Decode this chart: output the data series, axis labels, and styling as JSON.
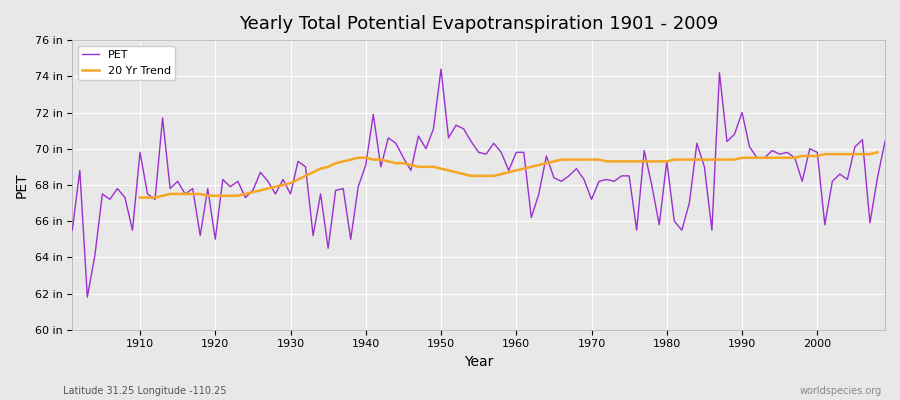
{
  "title": "Yearly Total Potential Evapotranspiration 1901 - 2009",
  "xlabel": "Year",
  "ylabel": "PET",
  "footnote_left": "Latitude 31.25 Longitude -110.25",
  "footnote_right": "worldspecies.org",
  "pet_color": "#9b30d0",
  "trend_color": "#f5a623",
  "bg_color": "#e8e8e8",
  "ylim": [
    60,
    76
  ],
  "ytick_labels": [
    "60 in",
    "62 in",
    "64 in",
    "66 in",
    "68 in",
    "70 in",
    "72 in",
    "74 in",
    "76 in"
  ],
  "ytick_values": [
    60,
    62,
    64,
    66,
    68,
    70,
    72,
    74,
    76
  ],
  "xtick_values": [
    1910,
    1920,
    1930,
    1940,
    1950,
    1960,
    1970,
    1980,
    1990,
    2000
  ],
  "years": [
    1901,
    1902,
    1903,
    1904,
    1905,
    1906,
    1907,
    1908,
    1909,
    1910,
    1911,
    1912,
    1913,
    1914,
    1915,
    1916,
    1917,
    1918,
    1919,
    1920,
    1921,
    1922,
    1923,
    1924,
    1925,
    1926,
    1927,
    1928,
    1929,
    1930,
    1931,
    1932,
    1933,
    1934,
    1935,
    1936,
    1937,
    1938,
    1939,
    1940,
    1941,
    1942,
    1943,
    1944,
    1945,
    1946,
    1947,
    1948,
    1949,
    1950,
    1951,
    1952,
    1953,
    1954,
    1955,
    1956,
    1957,
    1958,
    1959,
    1960,
    1961,
    1962,
    1963,
    1964,
    1965,
    1966,
    1967,
    1968,
    1969,
    1970,
    1971,
    1972,
    1973,
    1974,
    1975,
    1976,
    1977,
    1978,
    1979,
    1980,
    1981,
    1982,
    1983,
    1984,
    1985,
    1986,
    1987,
    1988,
    1989,
    1990,
    1991,
    1992,
    1993,
    1994,
    1995,
    1996,
    1997,
    1998,
    1999,
    2000,
    2001,
    2002,
    2003,
    2004,
    2005,
    2006,
    2007,
    2008,
    2009
  ],
  "pet_values": [
    65.5,
    68.8,
    61.8,
    64.1,
    67.5,
    67.2,
    67.8,
    67.3,
    65.5,
    69.8,
    67.5,
    67.2,
    71.7,
    67.8,
    68.2,
    67.5,
    67.8,
    65.2,
    67.8,
    65.0,
    68.3,
    67.9,
    68.2,
    67.3,
    67.7,
    68.7,
    68.2,
    67.5,
    68.3,
    67.5,
    69.3,
    69.0,
    65.2,
    67.5,
    64.5,
    67.7,
    67.8,
    65.0,
    67.9,
    69.1,
    71.9,
    69.0,
    70.6,
    70.3,
    69.5,
    68.8,
    70.7,
    70.0,
    71.1,
    74.4,
    70.6,
    71.3,
    71.1,
    70.4,
    69.8,
    69.7,
    70.3,
    69.8,
    68.8,
    69.8,
    69.8,
    66.2,
    67.5,
    69.6,
    68.4,
    68.2,
    68.5,
    68.9,
    68.3,
    67.2,
    68.2,
    68.3,
    68.2,
    68.5,
    68.5,
    65.5,
    69.9,
    68.0,
    65.8,
    69.3,
    66.0,
    65.5,
    67.0,
    70.3,
    69.0,
    65.5,
    74.2,
    70.4,
    70.8,
    72.0,
    70.1,
    69.5,
    69.5,
    69.9,
    69.7,
    69.8,
    69.5,
    68.2,
    70.0,
    69.8,
    65.8,
    68.2,
    68.6,
    68.3,
    70.1,
    70.5,
    65.9,
    68.4,
    70.4
  ],
  "trend_start_year": 1910,
  "trend_values": [
    67.3,
    67.3,
    67.3,
    67.4,
    67.5,
    67.5,
    67.5,
    67.5,
    67.5,
    67.4,
    67.4,
    67.4,
    67.4,
    67.4,
    67.5,
    67.6,
    67.7,
    67.8,
    67.9,
    68.0,
    68.1,
    68.3,
    68.5,
    68.7,
    68.9,
    69.0,
    69.2,
    69.3,
    69.4,
    69.5,
    69.5,
    69.4,
    69.4,
    69.3,
    69.2,
    69.2,
    69.1,
    69.0,
    69.0,
    69.0,
    68.9,
    68.8,
    68.7,
    68.6,
    68.5,
    68.5,
    68.5,
    68.5,
    68.6,
    68.7,
    68.8,
    68.9,
    69.0,
    69.1,
    69.2,
    69.3,
    69.4,
    69.4,
    69.4,
    69.4,
    69.4,
    69.4,
    69.3,
    69.3,
    69.3,
    69.3,
    69.3,
    69.3,
    69.3,
    69.3,
    69.3,
    69.4,
    69.4,
    69.4,
    69.4,
    69.4,
    69.4,
    69.4,
    69.4,
    69.4,
    69.5,
    69.5,
    69.5,
    69.5,
    69.5,
    69.5,
    69.5,
    69.5,
    69.6,
    69.6,
    69.6,
    69.7,
    69.7,
    69.7,
    69.7,
    69.7,
    69.7,
    69.7,
    69.8
  ]
}
